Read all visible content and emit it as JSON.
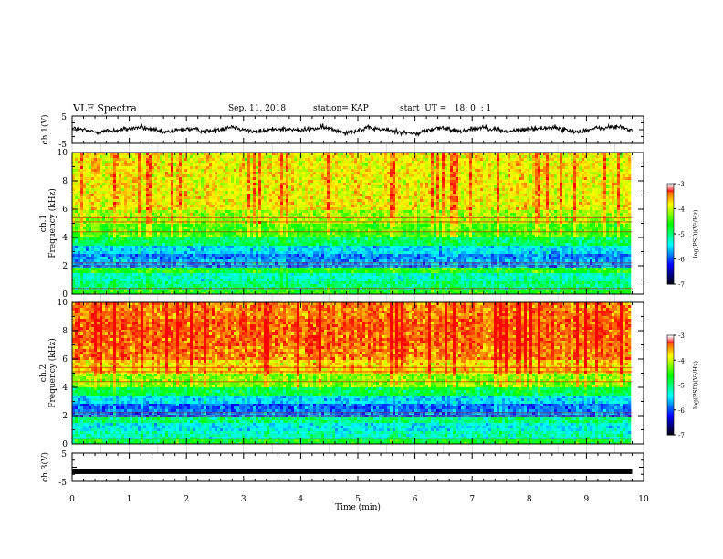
{
  "header": {
    "title": "VLF Spectra",
    "date": "Sep. 11, 2018",
    "station": "station= KAP",
    "start": "start  UT =   18: 0  : 1"
  },
  "colors": {
    "background": "#ffffff",
    "axis": "#000000",
    "trace": "#000000",
    "colormap": [
      "#000000",
      "#0000ff",
      "#00ffff",
      "#00ff00",
      "#ffff00",
      "#ff0000",
      "#ffffff"
    ]
  },
  "chart_data": [
    {
      "type": "line",
      "panel": "ch1-waveform",
      "ylabel": "ch.1(V)",
      "ylim": [
        -5,
        5
      ],
      "yticks": [
        "5",
        "-5"
      ],
      "xlim": [
        0,
        10
      ],
      "series": [
        {
          "x": [
            0.0,
            0.4,
            0.8,
            1.2,
            1.6,
            2.0,
            2.4,
            2.8,
            3.2,
            3.6,
            4.0,
            4.4,
            4.8,
            5.2,
            5.6,
            6.0,
            6.4,
            6.8,
            7.2,
            7.6,
            8.0,
            8.4,
            8.8,
            9.2,
            9.6,
            9.8
          ],
          "values": [
            0.5,
            -0.8,
            -0.2,
            0.9,
            -1.1,
            0.3,
            -0.6,
            1.2,
            -0.9,
            0.4,
            -0.3,
            0.8,
            -1.0,
            0.6,
            -0.4,
            -1.6,
            0.7,
            -0.5,
            1.0,
            -0.7,
            0.2,
            0.9,
            -0.8,
            0.5,
            1.1,
            -0.3
          ]
        }
      ]
    },
    {
      "type": "heatmap",
      "panel": "ch1-spectrogram",
      "ylabel": "ch.1\nFrequency (kHz)",
      "ylim": [
        0,
        10
      ],
      "yticks": [
        0,
        2,
        4,
        6,
        8,
        10
      ],
      "xlim": [
        0,
        10
      ],
      "colorbar": {
        "label": "log(PSD)(V²/Hz)",
        "range": [
          -7,
          -3
        ],
        "ticks": [
          "-3",
          "-4",
          "-5",
          "-6",
          "-7"
        ]
      },
      "freq_bands_khz": [
        0.5,
        1.0,
        1.5,
        2.0,
        2.5,
        3.0,
        3.5,
        4.0,
        5.0,
        6.0,
        7.0,
        8.0,
        9.0,
        10.0
      ],
      "band_levels": [
        -4.6,
        -5.0,
        -5.2,
        -4.6,
        -5.7,
        -5.8,
        -5.5,
        -4.9,
        -4.4,
        -4.1,
        -3.8,
        -3.8,
        -3.8,
        -3.8
      ]
    },
    {
      "type": "heatmap",
      "panel": "ch2-spectrogram",
      "ylabel": "ch.2\nFrequency (kHz)",
      "ylim": [
        0,
        10
      ],
      "yticks": [
        0,
        2,
        4,
        6,
        8,
        10
      ],
      "xlim": [
        0,
        10
      ],
      "colorbar": {
        "label": "log(PSD)(V²/Hz)",
        "range": [
          -7,
          -3
        ],
        "ticks": [
          "-3",
          "-4",
          "-5",
          "-6",
          "-7"
        ]
      },
      "freq_bands_khz": [
        0.5,
        1.0,
        1.5,
        2.0,
        2.5,
        3.0,
        3.5,
        4.0,
        5.0,
        6.0,
        7.0,
        8.0,
        9.0,
        10.0
      ],
      "band_levels": [
        -4.7,
        -5.2,
        -5.4,
        -5.0,
        -5.8,
        -5.9,
        -5.5,
        -4.8,
        -4.2,
        -3.7,
        -3.4,
        -3.3,
        -3.3,
        -3.4
      ]
    },
    {
      "type": "line",
      "panel": "ch3-waveform",
      "ylabel": "ch.3(V)",
      "ylim": [
        -5,
        5
      ],
      "yticks": [
        "5",
        "-5"
      ],
      "xlim": [
        0,
        10
      ],
      "series": [
        {
          "x": [
            0,
            9.8
          ],
          "values": [
            -1.6,
            -1.6
          ]
        }
      ]
    }
  ],
  "xaxis": {
    "label": "Time (min)",
    "ticks": [
      "0",
      "1",
      "2",
      "3",
      "4",
      "5",
      "6",
      "7",
      "8",
      "9",
      "10"
    ]
  }
}
